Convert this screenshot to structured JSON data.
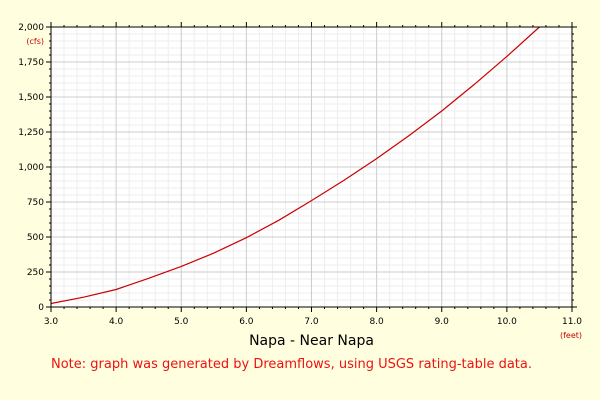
{
  "chart_data": {
    "type": "line",
    "title": "Napa - Near Napa",
    "xlabel": "(feet)",
    "ylabel": "(cfs)",
    "xlim": [
      3.0,
      11.0
    ],
    "ylim": [
      0,
      2000
    ],
    "x_ticks": [
      "3.0",
      "4.0",
      "5.0",
      "6.0",
      "7.0",
      "8.0",
      "9.0",
      "10.0",
      "11.0"
    ],
    "y_ticks": [
      "0",
      "250",
      "500",
      "750",
      "1,000",
      "1,250",
      "1,500",
      "1,750",
      "2,000"
    ],
    "grid": true,
    "series": [
      {
        "x": [
          3.0,
          3.5,
          4.0,
          4.5,
          5.0,
          5.5,
          6.0,
          6.5,
          7.0,
          7.5,
          8.0,
          8.5,
          9.0,
          9.5,
          10.0,
          10.5
        ],
        "values": [
          25,
          70,
          125,
          205,
          290,
          385,
          495,
          620,
          760,
          905,
          1060,
          1225,
          1400,
          1590,
          1790,
          2000
        ]
      }
    ]
  },
  "note": "Note: graph was generated by Dreamflows, using USGS rating-table data.",
  "colors": {
    "background": "#ffffe0",
    "plot_background": "#ffffff",
    "line": "#cc0000",
    "unit_label": "#cc0000",
    "note": "#ee1111",
    "grid_major": "#cccccc",
    "grid_minor": "#eeeeee"
  }
}
